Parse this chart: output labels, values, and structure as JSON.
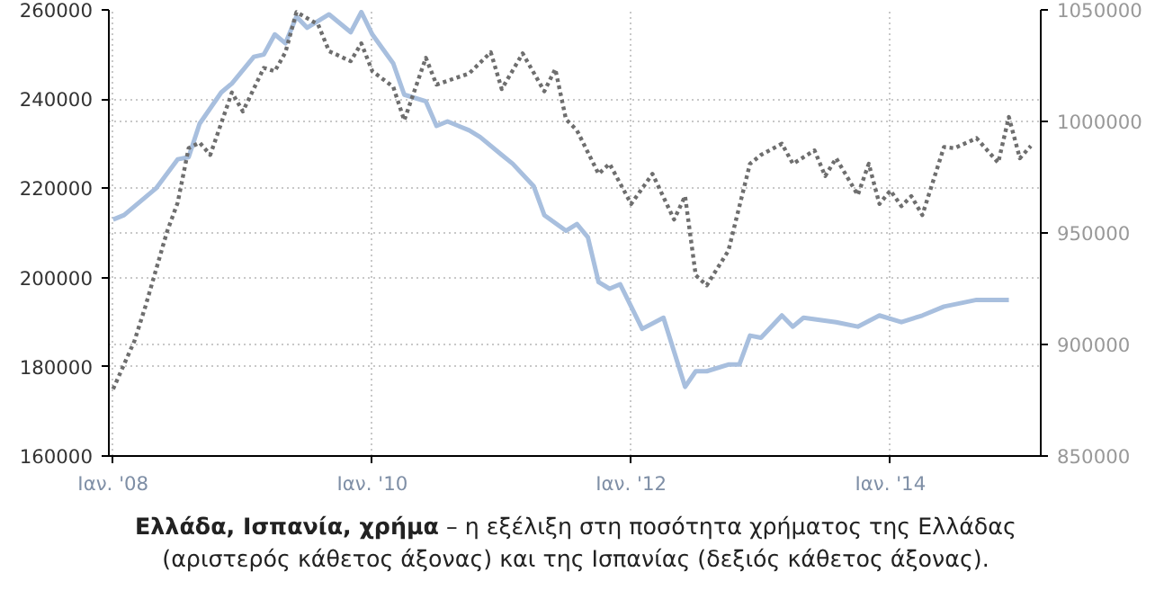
{
  "chart_data": {
    "type": "line",
    "xlim": [
      "2007-12-20",
      "2015-03-01"
    ],
    "xticks": [
      {
        "value": "2008-01-01",
        "label": "Ιαν. '08"
      },
      {
        "value": "2010-01-01",
        "label": "Ιαν. '10"
      },
      {
        "value": "2012-01-01",
        "label": "Ιαν. '12"
      },
      {
        "value": "2014-01-01",
        "label": "Ιαν. '14"
      }
    ],
    "ylim": [
      160000,
      260000
    ],
    "yticks": [
      160000,
      180000,
      200000,
      220000,
      240000,
      260000
    ],
    "y2lim": [
      850000,
      1050000
    ],
    "y2ticks": [
      850000,
      900000,
      950000,
      1000000,
      1050000
    ],
    "grid": true,
    "annotations": [
      "Ελλάδα, Ισπανία, χρήμα",
      "– η εξέλιξη στη ποσότητα χρήματος της Ελλάδας (αριστερός κάθετος άξονας) και της Ισπανίας (δεξιός κάθετος άξονας)."
    ],
    "series": [
      {
        "color": "#a8bfde",
        "line_style": "solid",
        "x": [
          "2008-01",
          "2008-02",
          "2008-05",
          "2008-07",
          "2008-08",
          "2008-09",
          "2008-11",
          "2008-12",
          "2009-02",
          "2009-03",
          "2009-04",
          "2009-05",
          "2009-06",
          "2009-07",
          "2009-09",
          "2009-11",
          "2009-12",
          "2010-01",
          "2010-03",
          "2010-04",
          "2010-06",
          "2010-07",
          "2010-08",
          "2010-10",
          "2010-11",
          "2011-01",
          "2011-02",
          "2011-04",
          "2011-05",
          "2011-07",
          "2011-08",
          "2011-09",
          "2011-10",
          "2011-11",
          "2011-12",
          "2012-02",
          "2012-04",
          "2012-06",
          "2012-07",
          "2012-08",
          "2012-10",
          "2012-11",
          "2012-12",
          "2013-01",
          "2013-03",
          "2013-04",
          "2013-05",
          "2013-08",
          "2013-10",
          "2013-12",
          "2014-02",
          "2014-04",
          "2014-06",
          "2014-09",
          "2014-12"
        ],
        "values": [
          213000,
          214000,
          220000,
          226500,
          227000,
          234500,
          241500,
          243500,
          249500,
          250000,
          254500,
          252500,
          258500,
          256000,
          259000,
          255000,
          259500,
          254500,
          248000,
          241000,
          239500,
          234000,
          235000,
          233000,
          231500,
          227500,
          225500,
          220500,
          214000,
          210500,
          212000,
          209000,
          199000,
          197500,
          198500,
          188500,
          191000,
          175500,
          179000,
          179000,
          180500,
          180500,
          187000,
          186500,
          191500,
          189000,
          191000,
          190000,
          189000,
          191500,
          190000,
          191500,
          193500,
          195000,
          195000
        ]
      },
      {
        "color": "#6e6e6e",
        "line_style": "dotted",
        "axis": "y2",
        "x": [
          "2008-01",
          "2008-03",
          "2008-04",
          "2008-06",
          "2008-07",
          "2008-08",
          "2008-09",
          "2008-10",
          "2008-12",
          "2009-01",
          "2009-03",
          "2009-04",
          "2009-05",
          "2009-06",
          "2009-08",
          "2009-09",
          "2009-11",
          "2009-12",
          "2010-01",
          "2010-03",
          "2010-04",
          "2010-06",
          "2010-07",
          "2010-10",
          "2010-12",
          "2011-01",
          "2011-03",
          "2011-05",
          "2011-06",
          "2011-07",
          "2011-08",
          "2011-10",
          "2011-11",
          "2012-01",
          "2012-03",
          "2012-05",
          "2012-06",
          "2012-07",
          "2012-08",
          "2012-10",
          "2012-12",
          "2013-01",
          "2013-03",
          "2013-04",
          "2013-06",
          "2013-07",
          "2013-08",
          "2013-10",
          "2013-11",
          "2013-12",
          "2014-01",
          "2014-02",
          "2014-03",
          "2014-04",
          "2014-06",
          "2014-07",
          "2014-09",
          "2014-11",
          "2014-12",
          "2015-01",
          "2015-02"
        ],
        "values": [
          880000,
          901500,
          917000,
          950500,
          963500,
          988000,
          990500,
          985000,
          1013000,
          1004500,
          1024000,
          1022500,
          1031000,
          1049000,
          1043500,
          1031500,
          1027000,
          1035000,
          1022500,
          1015500,
          1000500,
          1028500,
          1016500,
          1021500,
          1031000,
          1014500,
          1030500,
          1013500,
          1023500,
          1001000,
          996000,
          976500,
          981000,
          963000,
          976500,
          956000,
          966500,
          931000,
          926500,
          942000,
          981000,
          985000,
          990000,
          981000,
          987000,
          975500,
          983500,
          967000,
          981000,
          963000,
          969000,
          962000,
          966500,
          958000,
          988500,
          988000,
          992500,
          981500,
          1002000,
          983500,
          989000
        ]
      }
    ]
  }
}
